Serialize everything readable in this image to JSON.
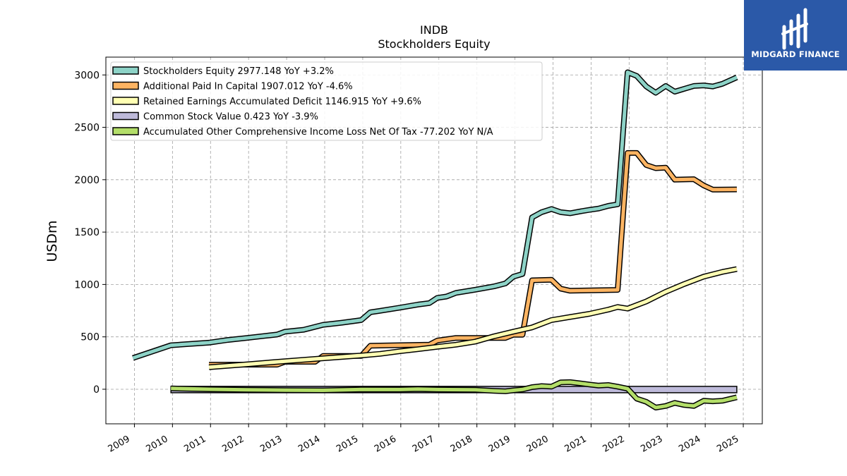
{
  "chart_data": {
    "type": "line",
    "title": "INDB",
    "subtitle": "Stockholders  Equity",
    "ylabel": "USDm",
    "xlabel": "",
    "ylim": [
      -330,
      3170
    ],
    "xlim": [
      2008.25,
      2025.5
    ],
    "y_ticks": [
      0,
      500,
      1000,
      1500,
      2000,
      2500,
      3000
    ],
    "x_ticks": [
      "2009",
      "2010",
      "2011",
      "2012",
      "2013",
      "2014",
      "2015",
      "2016",
      "2017",
      "2018",
      "2019",
      "2020",
      "2021",
      "2022",
      "2023",
      "2024",
      "2025"
    ],
    "grid": true,
    "legend_position": "top-left",
    "series": [
      {
        "name": "Stockholders Equity",
        "legend": "Stockholders Equity  2977.148 YoY +3.2%",
        "color": "#8dd3c7",
        "points": [
          [
            2008.96,
            298
          ],
          [
            2009.96,
            420
          ],
          [
            2010.96,
            445
          ],
          [
            2011.45,
            470
          ],
          [
            2011.96,
            490
          ],
          [
            2012.45,
            510
          ],
          [
            2012.75,
            522
          ],
          [
            2012.96,
            550
          ],
          [
            2013.45,
            568
          ],
          [
            2013.96,
            615
          ],
          [
            2014.45,
            635
          ],
          [
            2014.96,
            660
          ],
          [
            2015.2,
            735
          ],
          [
            2015.45,
            748
          ],
          [
            2015.96,
            778
          ],
          [
            2016.45,
            808
          ],
          [
            2016.75,
            822
          ],
          [
            2016.96,
            872
          ],
          [
            2017.2,
            885
          ],
          [
            2017.45,
            920
          ],
          [
            2017.96,
            950
          ],
          [
            2018.45,
            982
          ],
          [
            2018.75,
            1010
          ],
          [
            2018.96,
            1075
          ],
          [
            2019.2,
            1100
          ],
          [
            2019.45,
            1640
          ],
          [
            2019.7,
            1690
          ],
          [
            2019.96,
            1720
          ],
          [
            2020.2,
            1690
          ],
          [
            2020.45,
            1680
          ],
          [
            2020.75,
            1700
          ],
          [
            2020.96,
            1712
          ],
          [
            2021.2,
            1725
          ],
          [
            2021.45,
            1750
          ],
          [
            2021.7,
            1765
          ],
          [
            2021.96,
            3025
          ],
          [
            2022.2,
            2990
          ],
          [
            2022.45,
            2890
          ],
          [
            2022.7,
            2830
          ],
          [
            2022.96,
            2895
          ],
          [
            2023.2,
            2840
          ],
          [
            2023.45,
            2868
          ],
          [
            2023.7,
            2895
          ],
          [
            2023.96,
            2900
          ],
          [
            2024.2,
            2890
          ],
          [
            2024.45,
            2915
          ],
          [
            2024.83,
            2977
          ]
        ]
      },
      {
        "name": "Additional Paid In Capital",
        "legend": "Additional Paid In Capital  1907.012 YoY -4.6%",
        "color": "#fdb462",
        "points": [
          [
            2010.96,
            235
          ],
          [
            2011.96,
            235
          ],
          [
            2012.75,
            235
          ],
          [
            2012.96,
            262
          ],
          [
            2013.75,
            262
          ],
          [
            2013.96,
            318
          ],
          [
            2014.96,
            318
          ],
          [
            2015.2,
            415
          ],
          [
            2016.75,
            425
          ],
          [
            2016.96,
            465
          ],
          [
            2017.45,
            490
          ],
          [
            2018.75,
            490
          ],
          [
            2018.96,
            520
          ],
          [
            2019.2,
            520
          ],
          [
            2019.45,
            1040
          ],
          [
            2019.96,
            1045
          ],
          [
            2020.2,
            960
          ],
          [
            2020.45,
            940
          ],
          [
            2021.7,
            948
          ],
          [
            2021.96,
            2255
          ],
          [
            2022.2,
            2255
          ],
          [
            2022.45,
            2140
          ],
          [
            2022.7,
            2110
          ],
          [
            2022.96,
            2115
          ],
          [
            2023.2,
            2000
          ],
          [
            2023.7,
            2005
          ],
          [
            2023.96,
            1945
          ],
          [
            2024.2,
            1905
          ],
          [
            2024.83,
            1907
          ]
        ]
      },
      {
        "name": "Retained Earnings Accumulated Deficit",
        "legend": "Retained Earnings Accumulated Deficit  1146.915 YoY +9.6%",
        "color": "#ffffb3",
        "points": [
          [
            2010.96,
            210
          ],
          [
            2011.96,
            238
          ],
          [
            2012.96,
            268
          ],
          [
            2013.96,
            295
          ],
          [
            2014.96,
            322
          ],
          [
            2015.45,
            338
          ],
          [
            2015.96,
            362
          ],
          [
            2016.45,
            382
          ],
          [
            2016.96,
            405
          ],
          [
            2017.45,
            425
          ],
          [
            2017.96,
            455
          ],
          [
            2018.45,
            505
          ],
          [
            2018.96,
            550
          ],
          [
            2019.45,
            590
          ],
          [
            2019.96,
            660
          ],
          [
            2020.45,
            690
          ],
          [
            2020.96,
            720
          ],
          [
            2021.45,
            760
          ],
          [
            2021.7,
            785
          ],
          [
            2021.96,
            770
          ],
          [
            2022.45,
            838
          ],
          [
            2022.96,
            930
          ],
          [
            2023.45,
            1005
          ],
          [
            2023.96,
            1075
          ],
          [
            2024.45,
            1120
          ],
          [
            2024.83,
            1147
          ]
        ]
      },
      {
        "name": "Common Stock Value",
        "legend": "Common Stock Value  0.423 YoY -3.9%",
        "color": "#bebada",
        "points": [
          [
            2009.96,
            0.5
          ],
          [
            2024.83,
            0.42
          ]
        ]
      },
      {
        "name": "Accumulated Other Comprehensive Income Loss Net Of Tax",
        "legend": "Accumulated Other Comprehensive Income Loss Net Of Tax  -77.202 YoY N/A",
        "color": "#b3de69",
        "points": [
          [
            2009.96,
            8
          ],
          [
            2010.96,
            0
          ],
          [
            2011.96,
            -5
          ],
          [
            2012.96,
            -8
          ],
          [
            2013.96,
            -10
          ],
          [
            2014.96,
            -2
          ],
          [
            2015.96,
            -3
          ],
          [
            2016.45,
            2
          ],
          [
            2016.96,
            -3
          ],
          [
            2017.96,
            -5
          ],
          [
            2018.45,
            -15
          ],
          [
            2018.75,
            -20
          ],
          [
            2018.96,
            -10
          ],
          [
            2019.2,
            -2
          ],
          [
            2019.45,
            20
          ],
          [
            2019.7,
            30
          ],
          [
            2019.96,
            25
          ],
          [
            2020.2,
            65
          ],
          [
            2020.45,
            68
          ],
          [
            2020.75,
            55
          ],
          [
            2020.96,
            45
          ],
          [
            2021.2,
            35
          ],
          [
            2021.45,
            40
          ],
          [
            2021.7,
            25
          ],
          [
            2021.96,
            5
          ],
          [
            2022.2,
            -90
          ],
          [
            2022.45,
            -120
          ],
          [
            2022.7,
            -175
          ],
          [
            2022.96,
            -160
          ],
          [
            2023.2,
            -130
          ],
          [
            2023.45,
            -150
          ],
          [
            2023.7,
            -160
          ],
          [
            2023.96,
            -110
          ],
          [
            2024.2,
            -115
          ],
          [
            2024.45,
            -110
          ],
          [
            2024.83,
            -77
          ]
        ]
      }
    ]
  },
  "brand": {
    "name": "MIDGARD FINANCE",
    "color": "#2b59a8",
    "icon": "midgard-logo-icon"
  }
}
